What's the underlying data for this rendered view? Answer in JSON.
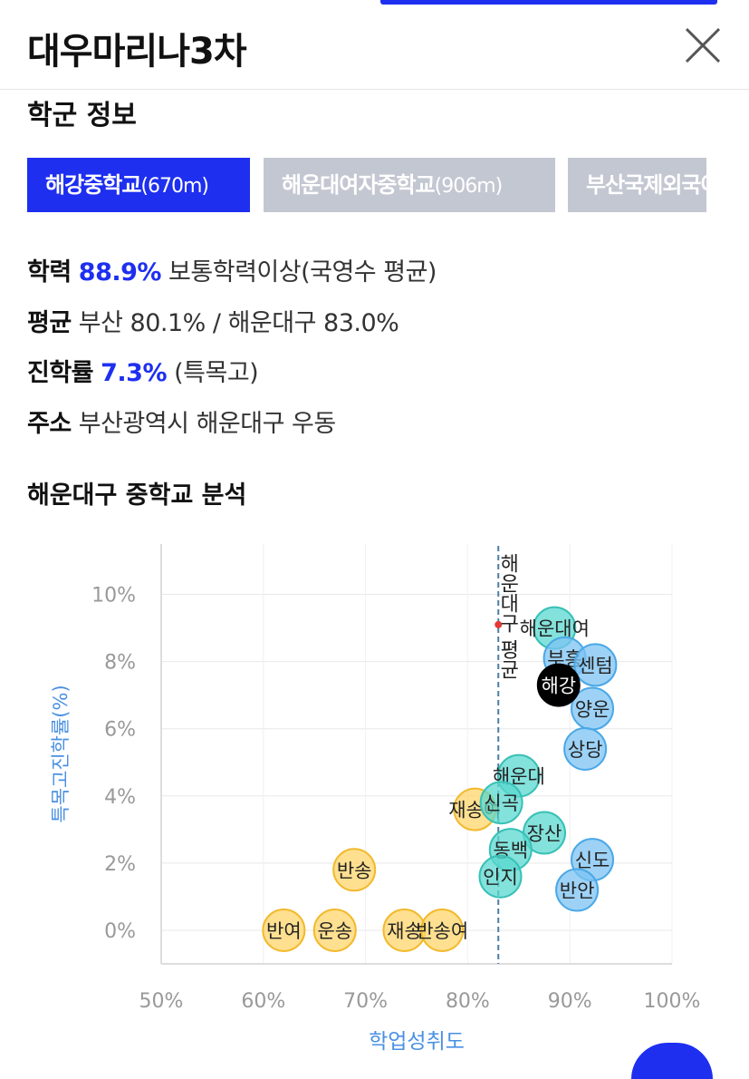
{
  "header": {
    "title": "대우마리나3차"
  },
  "section": {
    "title": "학군 정보"
  },
  "tabs": [
    {
      "name": "해강중학교",
      "distance": "(670m)",
      "active": true
    },
    {
      "name": "해운대여자중학교",
      "distance": "(906m)",
      "active": false
    },
    {
      "name": "부산국제외국어",
      "distance": "",
      "active": false
    }
  ],
  "info": {
    "achievement": {
      "label": "학력",
      "value": "88.9%",
      "desc": "보통학력이상(국영수 평균)"
    },
    "average": {
      "label": "평균",
      "desc": "부산 80.1% / 해운대구 83.0%"
    },
    "advancement": {
      "label": "진학률",
      "value": "7.3%",
      "desc": "(특목고)"
    },
    "address": {
      "label": "주소",
      "desc": "부산광역시 해운대구 우동"
    }
  },
  "analysis": {
    "title": "해운대구 중학교 분석"
  },
  "colors": {
    "accent": "#1e2ff0",
    "tab_inactive": "#c3c7d1",
    "teal": "#5ad8cf",
    "blue": "#7cc3f3",
    "yellow": "#ffd66b",
    "selected": "#000000",
    "avg_line": "#4b7fa6",
    "axis_title": "#4a90e2"
  },
  "chart_data": {
    "type": "scatter",
    "xlabel": "학업성취도",
    "ylabel": "특목고진학률(%)",
    "xlim": [
      50,
      100
    ],
    "ylim": [
      -1,
      11.5
    ],
    "xticks": [
      "50%",
      "60%",
      "70%",
      "80%",
      "90%",
      "100%"
    ],
    "yticks": [
      "0%",
      "2%",
      "4%",
      "6%",
      "8%",
      "10%"
    ],
    "grid": true,
    "reference_line": {
      "x": 83.0,
      "label": "해운대구 평균"
    },
    "points": [
      {
        "name": "해운대여",
        "x": 88.5,
        "y": 9.0,
        "group": "teal"
      },
      {
        "name": "부흥",
        "x": 89.5,
        "y": 8.1,
        "group": "blue"
      },
      {
        "name": "센텀",
        "x": 92.5,
        "y": 7.9,
        "group": "blue"
      },
      {
        "name": "양운",
        "x": 92.2,
        "y": 6.6,
        "group": "blue"
      },
      {
        "name": "상당",
        "x": 91.5,
        "y": 5.4,
        "group": "blue"
      },
      {
        "name": "해운대",
        "x": 85.0,
        "y": 4.6,
        "group": "teal"
      },
      {
        "name": "재송여",
        "x": 80.7,
        "y": 3.6,
        "group": "yellow"
      },
      {
        "name": "신곡",
        "x": 83.3,
        "y": 3.8,
        "group": "teal"
      },
      {
        "name": "장산",
        "x": 87.5,
        "y": 2.9,
        "group": "teal"
      },
      {
        "name": "동백",
        "x": 84.2,
        "y": 2.4,
        "group": "teal"
      },
      {
        "name": "신도",
        "x": 92.2,
        "y": 2.1,
        "group": "blue"
      },
      {
        "name": "인지",
        "x": 83.2,
        "y": 1.6,
        "group": "teal"
      },
      {
        "name": "반안",
        "x": 90.7,
        "y": 1.2,
        "group": "blue"
      },
      {
        "name": "반송",
        "x": 68.9,
        "y": 1.8,
        "group": "yellow"
      },
      {
        "name": "반여",
        "x": 62.0,
        "y": 0.0,
        "group": "yellow"
      },
      {
        "name": "운송",
        "x": 67.0,
        "y": 0.0,
        "group": "yellow"
      },
      {
        "name": "재송",
        "x": 73.8,
        "y": 0.0,
        "group": "yellow"
      },
      {
        "name": "반송여",
        "x": 77.5,
        "y": 0.0,
        "group": "yellow"
      },
      {
        "name": "해강",
        "x": 88.9,
        "y": 7.3,
        "group": "selected"
      }
    ]
  }
}
